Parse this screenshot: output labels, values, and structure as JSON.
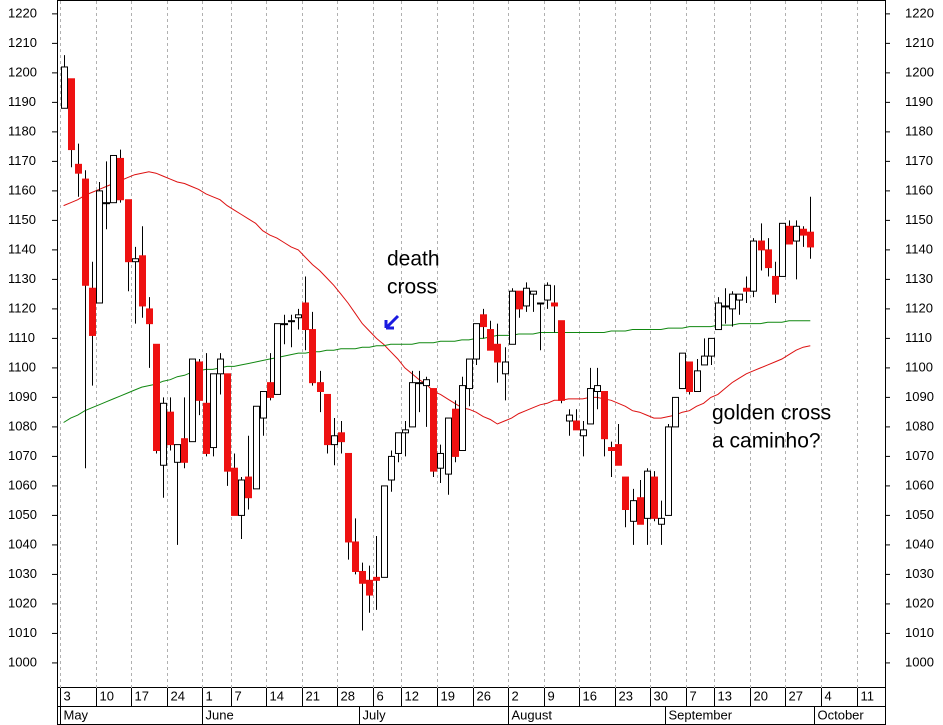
{
  "chart_data": {
    "type": "candlestick",
    "categories": [
      "3",
      null,
      null,
      null,
      null,
      "10",
      null,
      null,
      null,
      null,
      "17",
      null,
      null,
      null,
      null,
      "24",
      null,
      null,
      null,
      null,
      "1",
      null,
      null,
      null,
      "7",
      null,
      null,
      null,
      null,
      "14",
      null,
      null,
      null,
      null,
      "21",
      null,
      null,
      null,
      null,
      "28",
      null,
      null,
      null,
      null,
      "6",
      null,
      null,
      null,
      "12",
      null,
      null,
      null,
      null,
      "19",
      null,
      null,
      null,
      null,
      "26",
      null,
      null,
      null,
      null,
      "2",
      null,
      null,
      null,
      null,
      "9",
      null,
      null,
      null,
      null,
      "16",
      null,
      null,
      null,
      null,
      "23",
      null,
      null,
      null,
      null,
      "30",
      null,
      null,
      null,
      null,
      "7",
      null,
      null,
      null,
      "13",
      null,
      null,
      null,
      null,
      "20",
      null,
      null,
      null,
      null,
      "27",
      null,
      null,
      null,
      null,
      "4",
      null,
      null,
      null,
      null,
      "11",
      null,
      null,
      null
    ],
    "month_labels": [
      "May",
      null,
      null,
      null,
      null,
      null,
      null,
      null,
      null,
      null,
      null,
      null,
      null,
      null,
      null,
      null,
      null,
      null,
      null,
      null,
      "June",
      null,
      null,
      null,
      null,
      null,
      null,
      null,
      null,
      null,
      null,
      null,
      null,
      null,
      null,
      null,
      null,
      null,
      null,
      null,
      null,
      null,
      "July",
      null,
      null,
      null,
      null,
      null,
      null,
      null,
      null,
      null,
      null,
      null,
      null,
      null,
      null,
      null,
      null,
      null,
      null,
      null,
      null,
      "August",
      null,
      null,
      null,
      null,
      null,
      null,
      null,
      null,
      null,
      null,
      null,
      null,
      null,
      null,
      null,
      null,
      null,
      null,
      null,
      null,
      null,
      "September",
      null,
      null,
      null,
      null,
      null,
      null,
      null,
      null,
      null,
      null,
      null,
      null,
      null,
      null,
      null,
      null,
      null,
      null,
      null,
      null,
      "October",
      null,
      null,
      null,
      null,
      null,
      null,
      null,
      null,
      null
    ],
    "open": [
      1188,
      1198,
      1169,
      1164,
      1127,
      1122,
      1156,
      1156,
      1171,
      1157,
      1136,
      1138,
      1120,
      1108,
      1067,
      1085,
      1068,
      1076,
      1075,
      1102,
      1088,
      1073,
      1098,
      1098,
      1066,
      1050,
      1063,
      1059,
      1083,
      1095,
      1091,
      1115,
      1116,
      1117,
      1122,
      1113,
      1095,
      1091,
      1074,
      1078,
      1071,
      1041,
      1031,
      1028,
      1029,
      1029,
      1062,
      1071,
      1078,
      1080,
      1095,
      1094,
      1093,
      1066,
      1064,
      1086,
      1072,
      1093,
      1103,
      1118,
      1113,
      1108,
      1098,
      1108,
      1126,
      1121,
      1125,
      1122,
      1123,
      1122,
      1116,
      1082,
      1082,
      1077,
      1081,
      1092,
      1092,
      1073,
      1074,
      1063,
      1048,
      1056,
      1049,
      1063,
      1047,
      1050,
      1080,
      1093,
      1102,
      1092,
      1101,
      1104,
      1113,
      1121,
      1120,
      1123,
      1127,
      1126,
      1143,
      1140,
      1131,
      1131,
      1148,
      1143,
      1147,
      1146,
      null,
      null,
      null,
      null,
      null,
      null,
      null,
      null,
      null,
      null
    ],
    "high": [
      1206,
      1198,
      1176,
      1167,
      1136,
      1163,
      1170,
      1172,
      1174,
      1157,
      1141,
      1148,
      1124,
      1108,
      1090,
      1090,
      1074,
      1090,
      1103,
      1103,
      1105,
      1098,
      1105,
      1098,
      1071,
      1063,
      1077,
      1087,
      1092,
      1105,
      1115,
      1118,
      1118,
      1120,
      1131,
      1119,
      1099,
      1091,
      1083,
      1082,
      1071,
      1049,
      1034,
      1033,
      1043,
      1060,
      1072,
      1078,
      1082,
      1099,
      1099,
      1097,
      1093,
      1074,
      1083,
      1089,
      1097,
      1103,
      1115,
      1120,
      1116,
      1115,
      1107,
      1127,
      1126,
      1129,
      1126,
      1122,
      1129,
      1128,
      1116,
      1086,
      1086,
      1082,
      1100,
      1100,
      1092,
      1075,
      1081,
      1063,
      1059,
      1062,
      1066,
      1065,
      1055,
      1081,
      1090,
      1105,
      1102,
      1103,
      1110,
      1110,
      1124,
      1127,
      1126,
      1125,
      1131,
      1144,
      1149,
      1144,
      1136,
      1149,
      1150,
      1150,
      1148,
      1158,
      null,
      null,
      null,
      null,
      null,
      null,
      null,
      null,
      null,
      null
    ],
    "low": [
      1188,
      1168,
      1158,
      1066,
      1094,
      1122,
      1147,
      1156,
      1156,
      1126,
      1115,
      1117,
      1100,
      1071,
      1056,
      1072,
      1040,
      1066,
      1075,
      1084,
      1070,
      1070,
      1091,
      1060,
      1050,
      1042,
      1052,
      1059,
      1077,
      1089,
      1091,
      1108,
      1107,
      1113,
      1106,
      1094,
      1085,
      1071,
      1067,
      1071,
      1035,
      1030,
      1011,
      1017,
      1018,
      1029,
      1058,
      1068,
      1070,
      1080,
      1085,
      1080,
      1063,
      1061,
      1057,
      1068,
      1072,
      1087,
      1101,
      1110,
      1106,
      1095,
      1089,
      1108,
      1117,
      1119,
      1119,
      1106,
      1120,
      1112,
      1088,
      1077,
      1079,
      1070,
      1081,
      1086,
      1070,
      1063,
      1067,
      1046,
      1040,
      1047,
      1040,
      1048,
      1040,
      1050,
      1080,
      1093,
      1091,
      1092,
      1101,
      1101,
      1113,
      1115,
      1114,
      1118,
      1122,
      1124,
      1133,
      1131,
      1122,
      1131,
      1142,
      1130,
      1141,
      1137,
      null,
      null,
      null,
      null,
      null,
      null,
      null,
      null,
      null,
      null
    ],
    "close": [
      1202,
      1174,
      1166,
      1128,
      1111,
      1160,
      1156,
      1172,
      1157,
      1136,
      1137,
      1121,
      1115,
      1072,
      1088,
      1074,
      1074,
      1068,
      1103,
      1089,
      1071,
      1098,
      1103,
      1065,
      1050,
      1062,
      1056,
      1087,
      1092,
      1090,
      1115,
      1115,
      1116,
      1118,
      1113,
      1095,
      1092,
      1074,
      1077,
      1075,
      1041,
      1031,
      1027,
      1023,
      1028,
      1060,
      1070,
      1078,
      1079,
      1095,
      1095,
      1096,
      1065,
      1071,
      1083,
      1070,
      1094,
      1103,
      1115,
      1114,
      1106,
      1102,
      1102,
      1126,
      1120,
      1127,
      1126,
      1122,
      1128,
      1121,
      1089,
      1084,
      1079,
      1079,
      1093,
      1094,
      1076,
      1072,
      1067,
      1052,
      1055,
      1047,
      1065,
      1049,
      1049,
      1080,
      1090,
      1105,
      1092,
      1099,
      1104,
      1110,
      1122,
      1121,
      1125,
      1125,
      1126,
      1143,
      1140,
      1134,
      1125,
      1149,
      1142,
      1148,
      1145,
      1141,
      null,
      null,
      null,
      null,
      null,
      null,
      null,
      null,
      null,
      null
    ],
    "up_color": "#ffffff",
    "down_color": "#ee1111",
    "lines": [
      {
        "color": "#dd1111",
        "values": [
          1155,
          1156,
          1157,
          1158.5,
          1159.5,
          1160.5,
          1161.5,
          1162.5,
          1163.5,
          1164.5,
          1165.5,
          1166,
          1166.5,
          1166,
          1165,
          1164,
          1163,
          1162.5,
          1161.5,
          1160.5,
          1159,
          1158,
          1157,
          1155,
          1153.5,
          1152,
          1150.5,
          1149,
          1146.5,
          1145,
          1144,
          1142.5,
          1141,
          1140,
          1137.5,
          1135,
          1133,
          1130.5,
          1128,
          1125,
          1122,
          1118.5,
          1115,
          1112.5,
          1110,
          1108,
          1105.5,
          1103,
          1100,
          1098,
          1096,
          1094.5,
          1092,
          1091,
          1089.5,
          1088,
          1086.5,
          1086,
          1085,
          1083.5,
          1082.5,
          1081,
          1082,
          1083,
          1084.5,
          1085.5,
          1086.5,
          1087.5,
          1088,
          1089,
          1089,
          1089.5,
          1089.5,
          1089.5,
          1090,
          1090,
          1089.5,
          1089,
          1088,
          1087,
          1085.5,
          1085,
          1084,
          1083,
          1083,
          1083.5,
          1084,
          1085,
          1085.5,
          1087,
          1088,
          1090,
          1091,
          1093,
          1095,
          1096.5,
          1098,
          1099,
          1100,
          1101,
          1102,
          1103,
          1104.5,
          1106,
          1107,
          1107.5,
          null,
          null,
          null,
          null,
          null,
          null,
          null,
          null,
          null,
          null
        ]
      },
      {
        "color": "#118811",
        "values": [
          1081.5,
          1083,
          1084,
          1085.5,
          1086.5,
          1087.5,
          1088.5,
          1089.5,
          1090.5,
          1091.5,
          1092.5,
          1093.5,
          1094,
          1094.5,
          1095.5,
          1096,
          1097,
          1097.5,
          1098.5,
          1099,
          1099.5,
          1099.5,
          1100,
          1100.5,
          1100.5,
          1101,
          1101.5,
          1102,
          1102.5,
          1103,
          1103.5,
          1104,
          1104.5,
          1105,
          1105,
          1105.5,
          1105.5,
          1106,
          1106,
          1106.5,
          1106.5,
          1106.5,
          1107,
          1107,
          1107.5,
          1107.5,
          1108,
          1108,
          1108,
          1108,
          1108.5,
          1108.5,
          1108.5,
          1109,
          1109,
          1109,
          1109.5,
          1109.5,
          1110,
          1110,
          1110.5,
          1111,
          1111,
          1111,
          1111.5,
          1111.5,
          1111.5,
          1112,
          1112,
          1112,
          1112,
          1112,
          1112,
          1112,
          1112,
          1112,
          1112,
          1112.5,
          1112.5,
          1112.5,
          1113,
          1113,
          1113,
          1113,
          1113,
          1113.5,
          1113.5,
          1113.5,
          1114,
          1114,
          1114,
          1114,
          1114.5,
          1114.5,
          1114.5,
          1115,
          1115,
          1115,
          1115,
          1115.5,
          1115.5,
          1115.5,
          1116,
          1116,
          1116,
          1116,
          null,
          null,
          null,
          null,
          null,
          null,
          null,
          null,
          null,
          null
        ]
      }
    ],
    "ylim": [
      991.5,
      1224.7
    ],
    "yticks": [
      1000,
      1010,
      1020,
      1030,
      1040,
      1050,
      1060,
      1070,
      1080,
      1090,
      1100,
      1110,
      1120,
      1130,
      1140,
      1150,
      1160,
      1170,
      1180,
      1190,
      1200,
      1210,
      1220
    ],
    "annotations": [
      {
        "lines": [
          "death",
          "cross"
        ],
        "color": "#1a1ae0"
      },
      {
        "lines": [
          "golden cross",
          "a caminho?"
        ],
        "color": "#1a1ae0"
      }
    ]
  }
}
